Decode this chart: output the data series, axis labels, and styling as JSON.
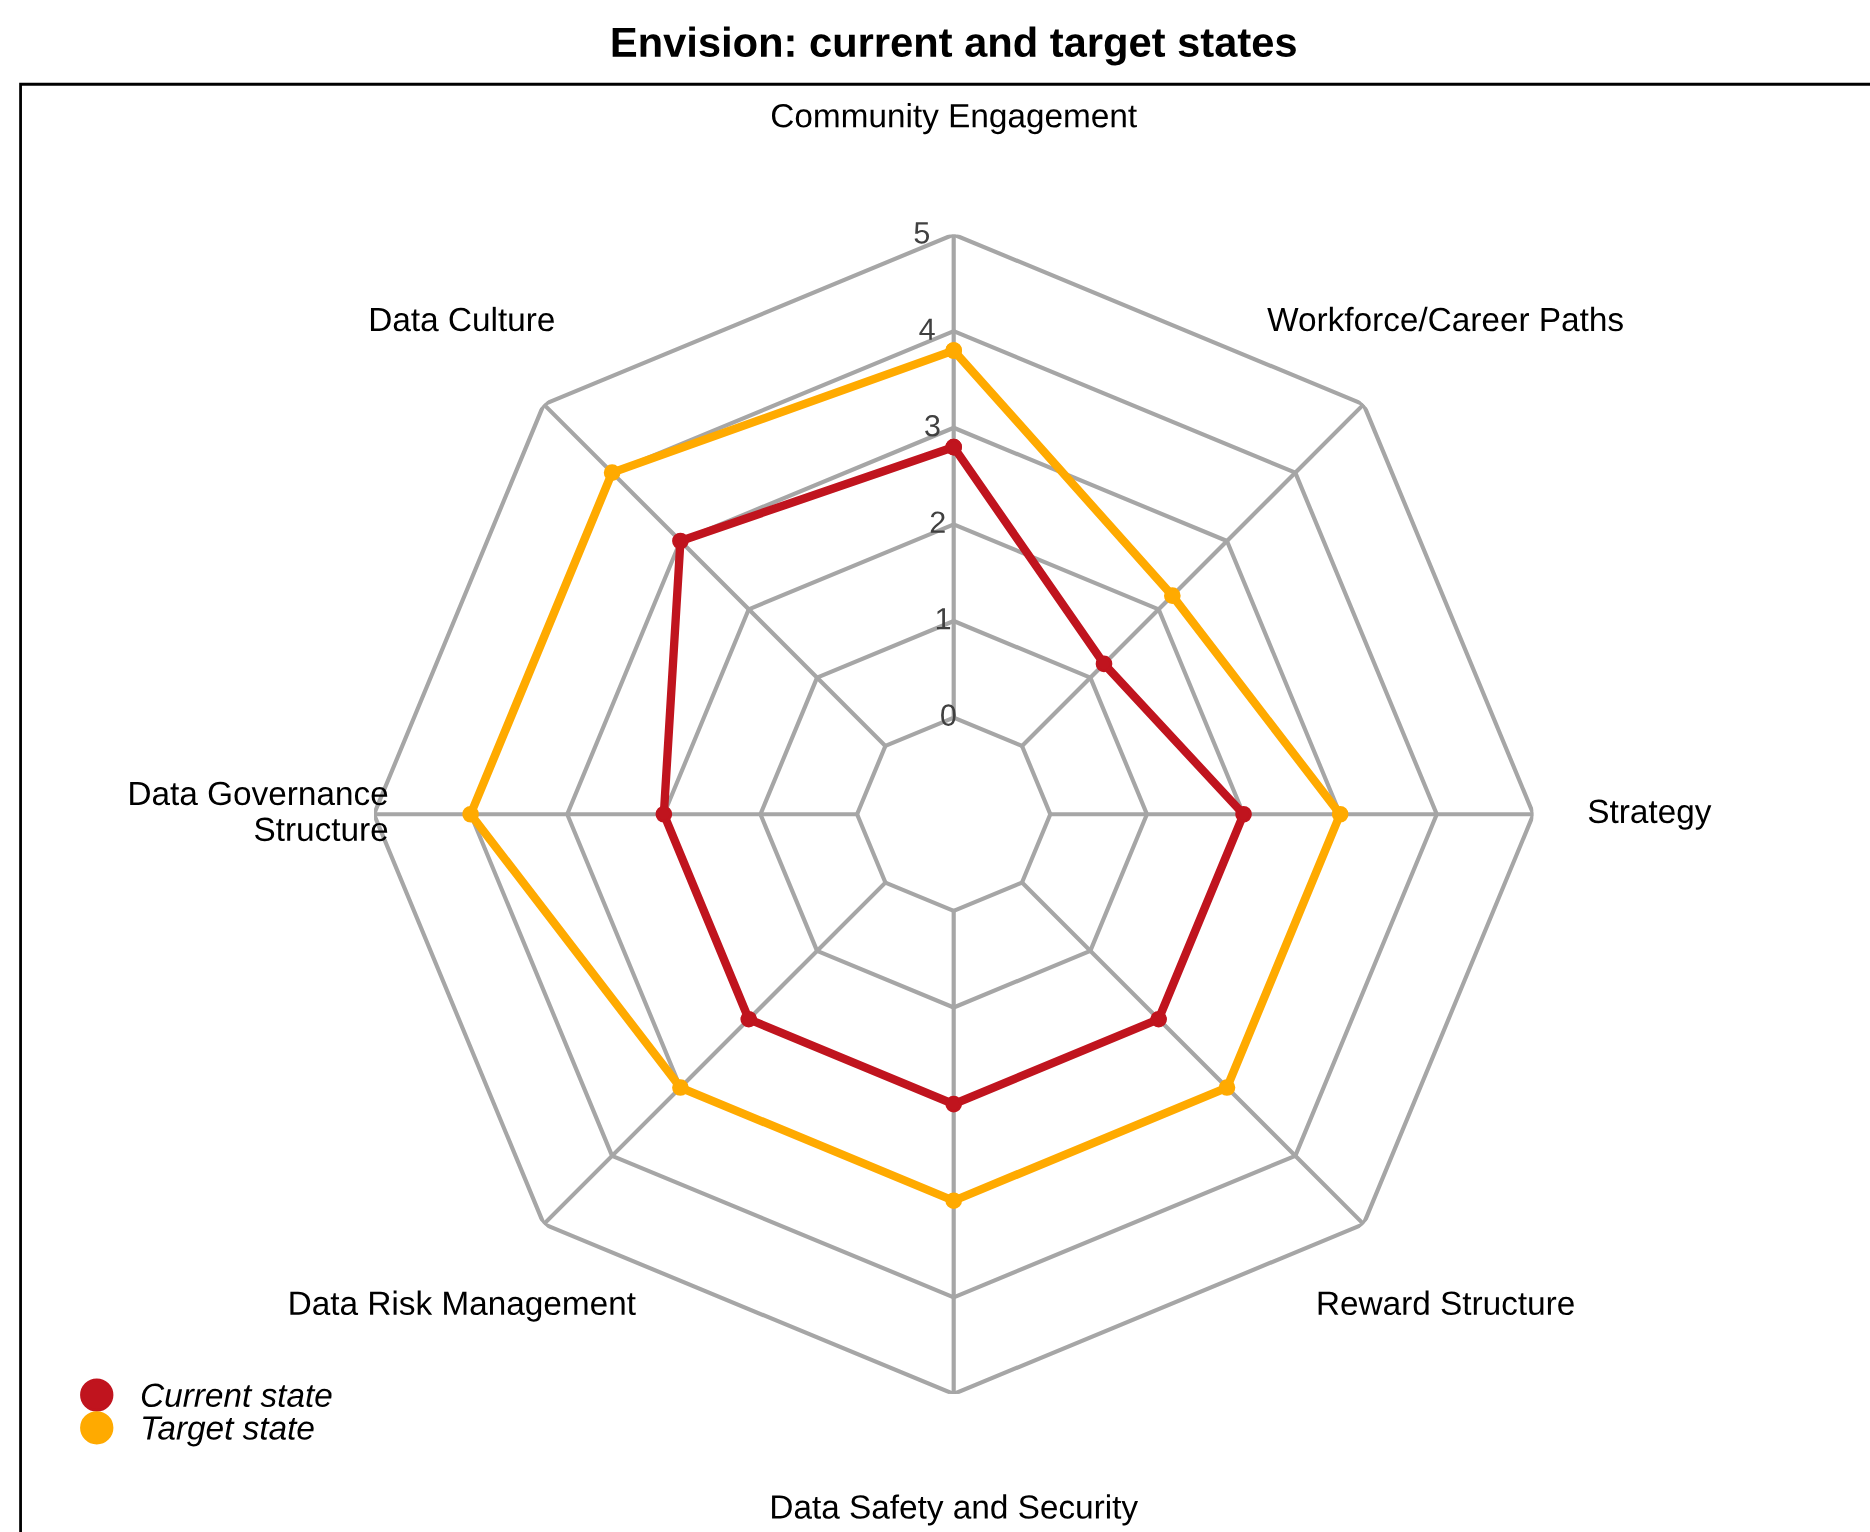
{
  "chart_data": {
    "type": "radar",
    "title": "Envision: current and target states",
    "categories": [
      "Community Engagement",
      "Workforce/Career Paths",
      "Strategy",
      "Reward Structure",
      "Data Safety and Security",
      "Data Risk Management",
      "Data Governance\nStructure",
      "Data Culture"
    ],
    "series": [
      {
        "name": "Current state",
        "color": "#c0141e",
        "values": [
          2.8,
          1.2,
          2,
          2,
          2,
          2,
          2,
          3
        ]
      },
      {
        "name": "Target state",
        "color": "#ffaa00",
        "values": [
          3.8,
          2.2,
          3,
          3,
          3,
          3,
          4,
          4
        ]
      }
    ],
    "ylim": [
      -1,
      5
    ],
    "yticks": [
      0,
      1,
      2,
      3,
      4,
      5
    ],
    "grid": true,
    "legend": "bottom left",
    "marker": "circle",
    "line_style": "solid"
  }
}
